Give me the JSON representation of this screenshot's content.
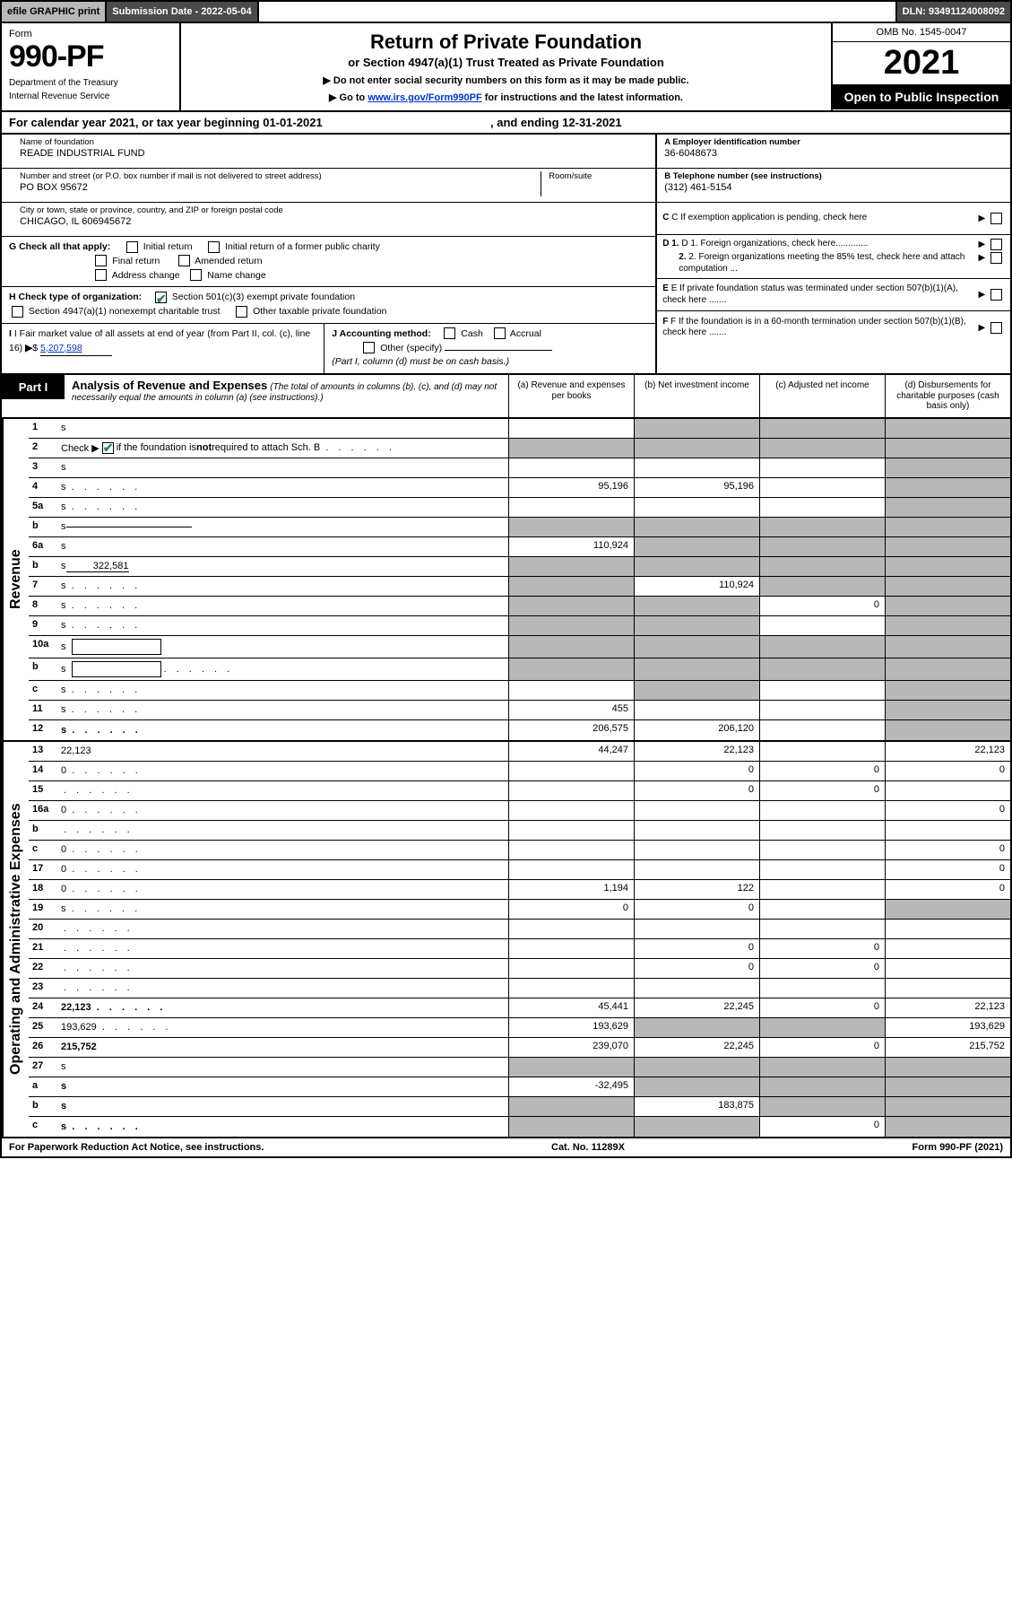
{
  "topbar": {
    "efile": "efile GRAPHIC print",
    "submission": "Submission Date - 2022-05-04",
    "dln": "DLN: 93491124008092"
  },
  "header": {
    "form_label": "Form",
    "form_num": "990-PF",
    "dept1": "Department of the Treasury",
    "dept2": "Internal Revenue Service",
    "title": "Return of Private Foundation",
    "subtitle": "or Section 4947(a)(1) Trust Treated as Private Foundation",
    "note1": "▶ Do not enter social security numbers on this form as it may be made public.",
    "note2_pre": "▶ Go to ",
    "note2_link": "www.irs.gov/Form990PF",
    "note2_post": " for instructions and the latest information.",
    "omb": "OMB No. 1545-0047",
    "year": "2021",
    "open": "Open to Public Inspection"
  },
  "cal_year": "For calendar year 2021, or tax year beginning 01-01-2021",
  "cal_year_end": ", and ending 12-31-2021",
  "info": {
    "name_lbl": "Name of foundation",
    "name_val": "READE INDUSTRIAL FUND",
    "addr_lbl": "Number and street (or P.O. box number if mail is not delivered to street address)",
    "addr_val": "PO BOX 95672",
    "room_lbl": "Room/suite",
    "city_lbl": "City or town, state or province, country, and ZIP or foreign postal code",
    "city_val": "CHICAGO, IL  606945672",
    "ein_lbl": "A Employer identification number",
    "ein_val": "36-6048673",
    "tel_lbl": "B Telephone number (see instructions)",
    "tel_val": "(312) 461-5154",
    "c_lbl": "C If exemption application is pending, check here",
    "d1_lbl": "D 1. Foreign organizations, check here.............",
    "d2_lbl": "2. Foreign organizations meeting the 85% test, check here and attach computation ...",
    "e_lbl": "E If private foundation status was terminated under section 507(b)(1)(A), check here .......",
    "f_lbl": "F If the foundation is in a 60-month termination under section 507(b)(1)(B), check here .......",
    "g_lbl": "G Check all that apply:",
    "g_opts": {
      "initial": "Initial return",
      "initial_former": "Initial return of a former public charity",
      "final": "Final return",
      "amended": "Amended return",
      "addr_change": "Address change",
      "name_change": "Name change"
    },
    "h_lbl": "H Check type of organization:",
    "h_501c3": "Section 501(c)(3) exempt private foundation",
    "h_4947": "Section 4947(a)(1) nonexempt charitable trust",
    "h_other_tax": "Other taxable private foundation",
    "i_lbl": "I Fair market value of all assets at end of year (from Part II, col. (c), line 16)",
    "i_val": "5,207,598",
    "j_lbl": "J Accounting method:",
    "j_cash": "Cash",
    "j_accrual": "Accrual",
    "j_other": "Other (specify)",
    "j_note": "(Part I, column (d) must be on cash basis.)"
  },
  "part1": {
    "tab": "Part I",
    "title": "Analysis of Revenue and Expenses",
    "title_note": "(The total of amounts in columns (b), (c), and (d) may not necessarily equal the amounts in column (a) (see instructions).)",
    "cols": {
      "a": "(a)  Revenue and expenses per books",
      "b": "(b)  Net investment income",
      "c": "(c)  Adjusted net income",
      "d": "(d)  Disbursements for charitable purposes (cash basis only)"
    }
  },
  "revenue_label": "Revenue",
  "expenses_label": "Operating and Administrative Expenses",
  "lines": [
    {
      "n": "1",
      "d": "s",
      "a": "",
      "b": "s",
      "c": "s"
    },
    {
      "n": "2",
      "d": "s",
      "dots": true,
      "a": "s",
      "b": "s",
      "c": "s",
      "checkmark": true
    },
    {
      "n": "3",
      "d": "s",
      "a": "",
      "b": "",
      "c": ""
    },
    {
      "n": "4",
      "d": "s",
      "dots": true,
      "a": "95,196",
      "b": "95,196",
      "c": ""
    },
    {
      "n": "5a",
      "d": "s",
      "dots": true,
      "a": "",
      "b": "",
      "c": ""
    },
    {
      "n": "b",
      "d": "s",
      "sub": true,
      "a": "s",
      "b": "s",
      "c": "s"
    },
    {
      "n": "6a",
      "d": "s",
      "a": "110,924",
      "b": "s",
      "c": "s"
    },
    {
      "n": "b",
      "d": "s",
      "subval": "322,581",
      "a": "s",
      "b": "s",
      "c": "s"
    },
    {
      "n": "7",
      "d": "s",
      "dots": true,
      "a": "s",
      "b": "110,924",
      "c": "s"
    },
    {
      "n": "8",
      "d": "s",
      "dots": true,
      "a": "s",
      "b": "s",
      "c": "0"
    },
    {
      "n": "9",
      "d": "s",
      "dots": true,
      "a": "s",
      "b": "s",
      "c": ""
    },
    {
      "n": "10a",
      "d": "s",
      "box": true,
      "a": "s",
      "b": "s",
      "c": "s"
    },
    {
      "n": "b",
      "d": "s",
      "dots": true,
      "box": true,
      "a": "s",
      "b": "s",
      "c": "s"
    },
    {
      "n": "c",
      "d": "s",
      "dots": true,
      "a": "",
      "b": "s",
      "c": ""
    },
    {
      "n": "11",
      "d": "s",
      "dots": true,
      "a": "455",
      "b": "",
      "c": ""
    },
    {
      "n": "12",
      "d": "s",
      "dots": true,
      "bold": true,
      "a": "206,575",
      "b": "206,120",
      "c": ""
    }
  ],
  "exp_lines": [
    {
      "n": "13",
      "d": "22,123",
      "a": "44,247",
      "b": "22,123",
      "c": ""
    },
    {
      "n": "14",
      "d": "0",
      "dots": true,
      "a": "",
      "b": "0",
      "c": "0"
    },
    {
      "n": "15",
      "d": "",
      "dots": true,
      "a": "",
      "b": "0",
      "c": "0"
    },
    {
      "n": "16a",
      "d": "0",
      "dots": true,
      "a": "",
      "b": "",
      "c": ""
    },
    {
      "n": "b",
      "d": "",
      "dots": true,
      "a": "",
      "b": "",
      "c": ""
    },
    {
      "n": "c",
      "d": "0",
      "dots": true,
      "a": "",
      "b": "",
      "c": ""
    },
    {
      "n": "17",
      "d": "0",
      "dots": true,
      "a": "",
      "b": "",
      "c": ""
    },
    {
      "n": "18",
      "d": "0",
      "dots": true,
      "a": "1,194",
      "b": "122",
      "c": ""
    },
    {
      "n": "19",
      "d": "s",
      "dots": true,
      "a": "0",
      "b": "0",
      "c": ""
    },
    {
      "n": "20",
      "d": "",
      "dots": true,
      "a": "",
      "b": "",
      "c": ""
    },
    {
      "n": "21",
      "d": "",
      "dots": true,
      "a": "",
      "b": "0",
      "c": "0"
    },
    {
      "n": "22",
      "d": "",
      "dots": true,
      "a": "",
      "b": "0",
      "c": "0"
    },
    {
      "n": "23",
      "d": "",
      "dots": true,
      "a": "",
      "b": "",
      "c": ""
    },
    {
      "n": "24",
      "d": "22,123",
      "dots": true,
      "bold": true,
      "a": "45,441",
      "b": "22,245",
      "c": "0"
    },
    {
      "n": "25",
      "d": "193,629",
      "dots": true,
      "a": "193,629",
      "b": "s",
      "c": "s"
    },
    {
      "n": "26",
      "d": "215,752",
      "bold": true,
      "a": "239,070",
      "b": "22,245",
      "c": "0"
    },
    {
      "n": "27",
      "d": "s",
      "a": "s",
      "b": "s",
      "c": "s"
    },
    {
      "n": "a",
      "d": "s",
      "bold": true,
      "a": "-32,495",
      "b": "s",
      "c": "s"
    },
    {
      "n": "b",
      "d": "s",
      "bold": true,
      "a": "s",
      "b": "183,875",
      "c": "s"
    },
    {
      "n": "c",
      "d": "s",
      "dots": true,
      "bold": true,
      "a": "s",
      "b": "s",
      "c": "0"
    }
  ],
  "footer": {
    "left": "For Paperwork Reduction Act Notice, see instructions.",
    "mid": "Cat. No. 11289X",
    "right": "Form 990-PF (2021)"
  },
  "colors": {
    "shaded": "#b8b8b8",
    "dark": "#4a4a4a",
    "green": "#2e8b3d",
    "link": "#0033cc"
  }
}
